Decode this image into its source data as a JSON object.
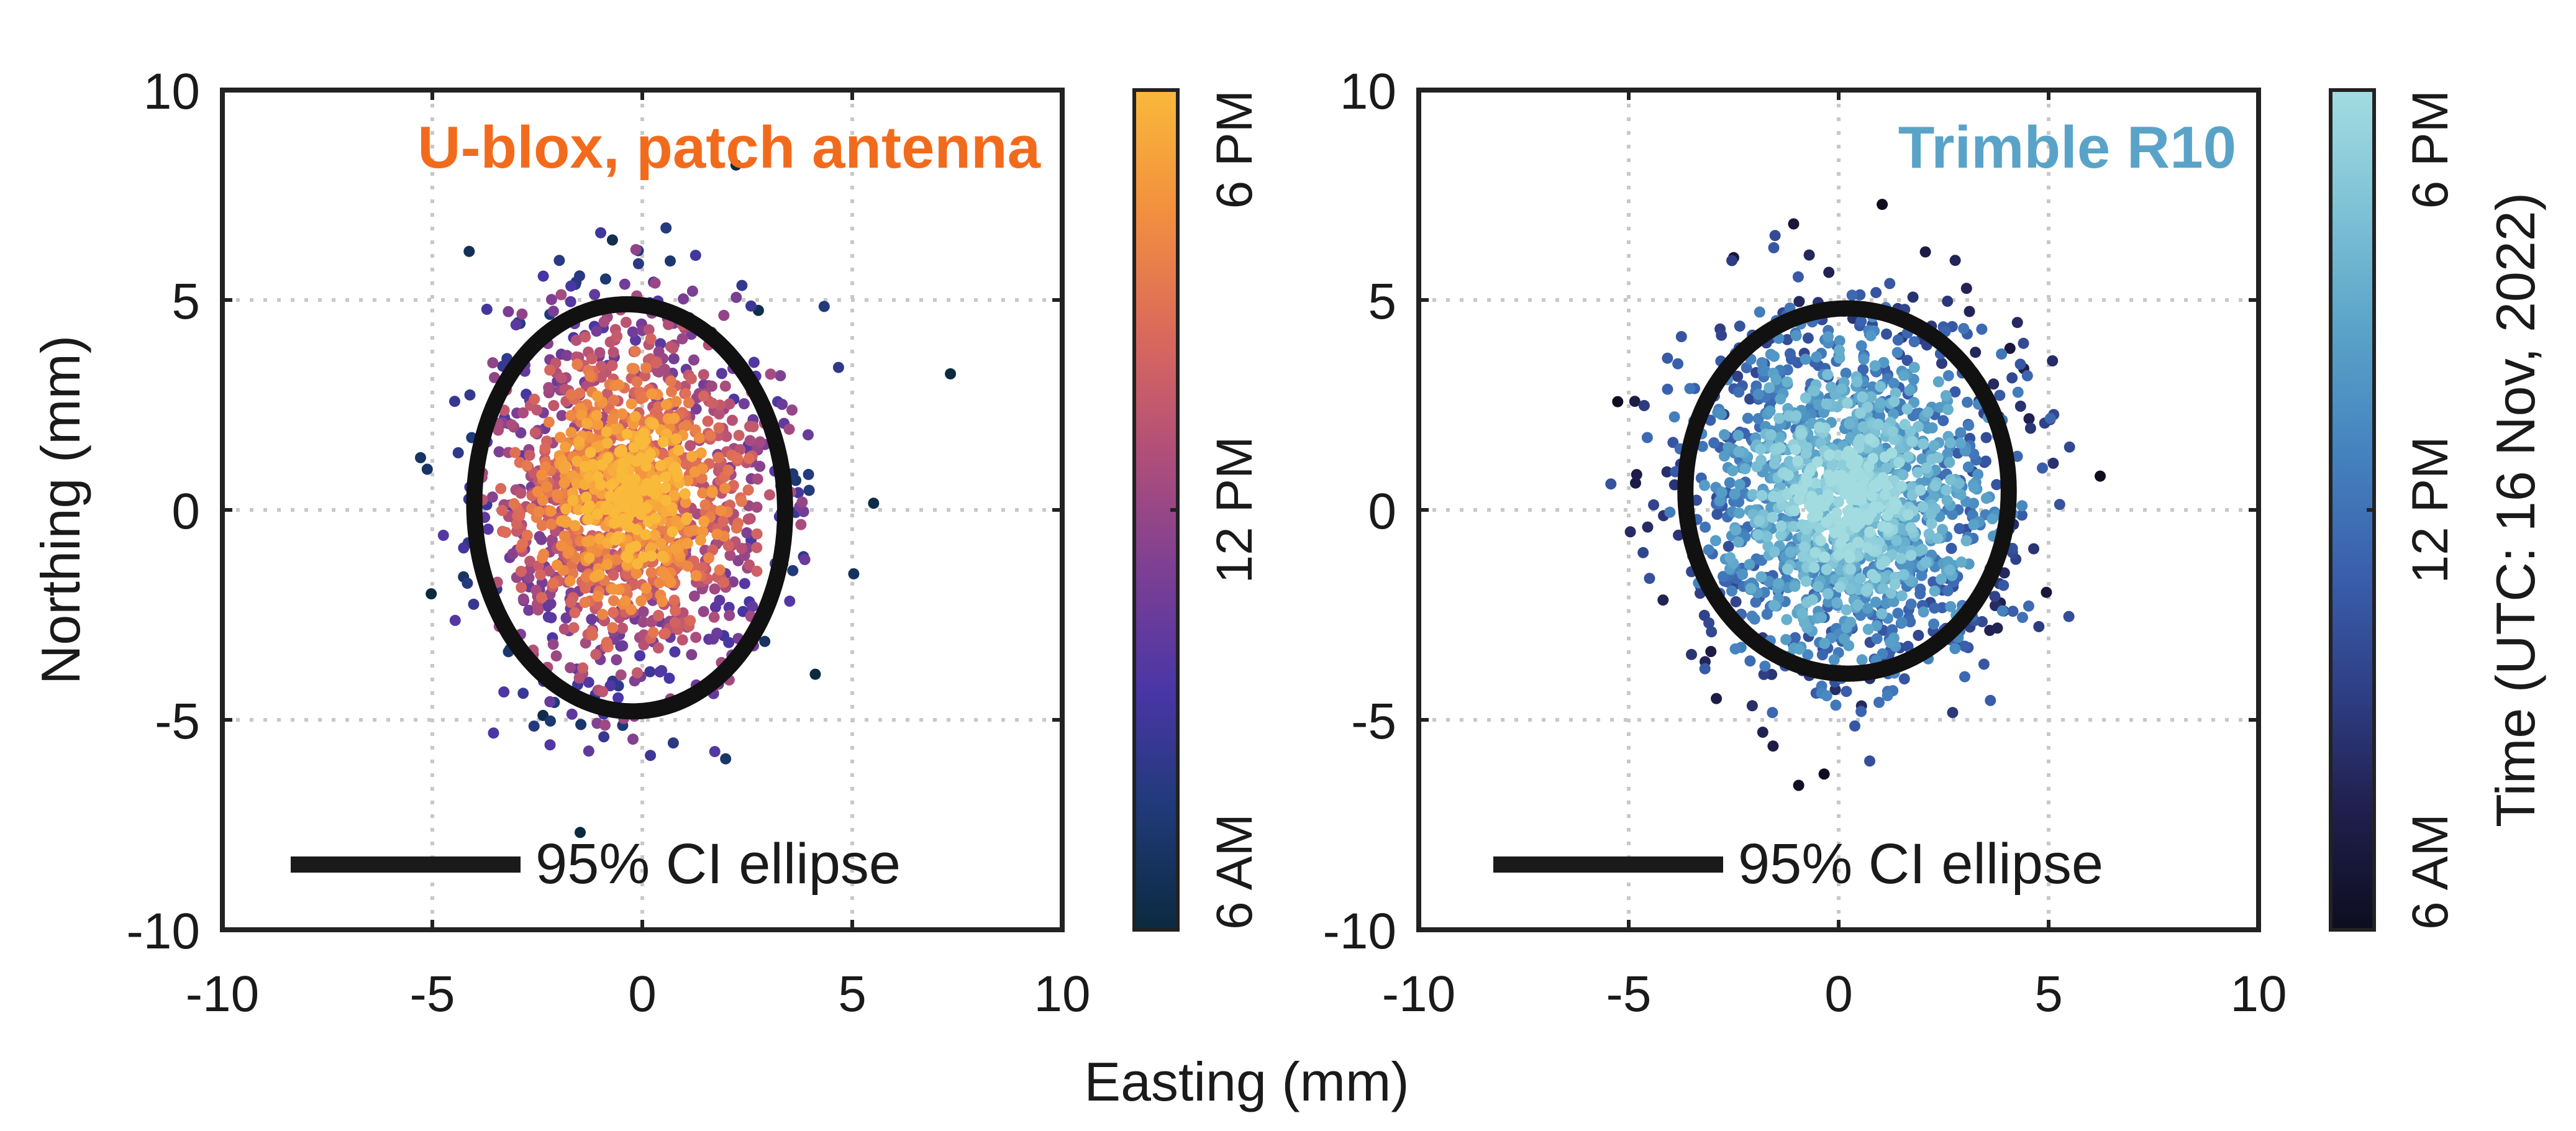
{
  "chart_data": [
    {
      "type": "scatter",
      "title": "U-blox, patch antenna",
      "title_color": "#f26b1d",
      "xlabel": "Easting (mm)",
      "ylabel": "Northing (mm)",
      "xlim": [
        -10,
        10
      ],
      "ylim": [
        -10,
        10
      ],
      "xticks": [
        "-10",
        "-5",
        "0",
        "5",
        "10"
      ],
      "yticks": [
        "10",
        "5",
        "0",
        "-5",
        "-10"
      ],
      "grid": true,
      "legend": {
        "label": "95% CI ellipse",
        "placement": "bottom"
      },
      "colorbar": {
        "ticks": [
          "6 PM",
          "12 PM",
          "6 AM"
        ],
        "label": "",
        "colors": [
          "#f9b93b",
          "#f2903e",
          "#dc6a5a",
          "#b24f79",
          "#7d3f93",
          "#4a36a6",
          "#1f3a78",
          "#0b2a3f"
        ]
      },
      "scatter_cloud": {
        "center": [
          -0.3,
          0.4
        ],
        "spread": [
          2.3,
          3.0
        ],
        "n_points": 1600
      },
      "ellipse": {
        "center": [
          -0.3,
          0.05
        ],
        "semi_axes": [
          3.7,
          4.85
        ],
        "rotation_deg": -2
      }
    },
    {
      "type": "scatter",
      "title": "Trimble R10",
      "title_color": "#5aa3c8",
      "xlabel": "Easting (mm)",
      "ylabel": "",
      "xlim": [
        -10,
        10
      ],
      "ylim": [
        -10,
        10
      ],
      "xticks": [
        "-10",
        "-5",
        "0",
        "5",
        "10"
      ],
      "yticks": [
        "10",
        "5",
        "0",
        "-5",
        "-10"
      ],
      "grid": true,
      "legend": {
        "label": "95% CI ellipse",
        "placement": "bottom"
      },
      "colorbar": {
        "ticks": [
          "6 PM",
          "12 PM",
          "6 AM"
        ],
        "label": "Time (UTC: 16 Nov, 2022)",
        "colors": [
          "#a3dce0",
          "#7ec2d6",
          "#5aa3c8",
          "#4583bf",
          "#3a60ad",
          "#2f3f86",
          "#201f4d",
          "#0d0d1f"
        ]
      },
      "scatter_cloud": {
        "center": [
          0.2,
          0.3
        ],
        "spread": [
          2.6,
          2.9
        ],
        "n_points": 1700
      },
      "ellipse": {
        "center": [
          0.2,
          0.45
        ],
        "semi_axes": [
          3.85,
          4.35
        ],
        "rotation_deg": 0
      }
    }
  ],
  "shared_xlabel": "Easting (mm)"
}
